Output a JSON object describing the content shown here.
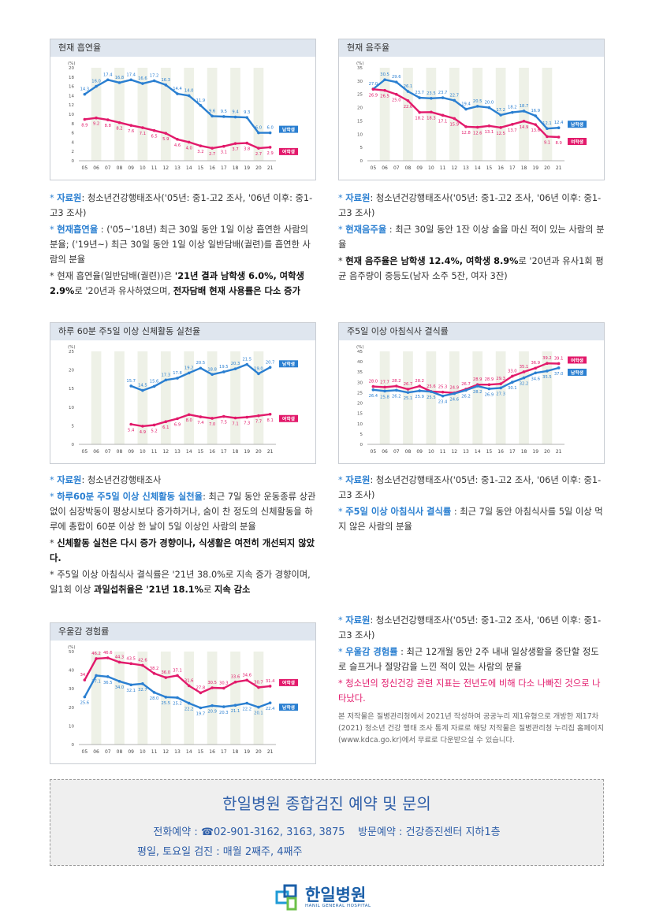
{
  "chart_data": [
    {
      "type": "line",
      "title": "현재 흡연율",
      "ylabel": "(%)",
      "ylim": [
        0,
        20
      ],
      "yticks": [
        0,
        2,
        4,
        6,
        8,
        10,
        12,
        14,
        16,
        18,
        20
      ],
      "categories": [
        "05",
        "06",
        "07",
        "08",
        "09",
        "10",
        "11",
        "12",
        "13",
        "14",
        "15",
        "16",
        "17",
        "18",
        "19",
        "20",
        "21"
      ],
      "series": [
        {
          "name": "남학생",
          "color": "#2a7fd1",
          "values": [
            14.3,
            16.0,
            17.4,
            16.8,
            17.4,
            16.6,
            17.2,
            16.3,
            14.4,
            14.0,
            11.9,
            9.6,
            9.5,
            9.4,
            9.3,
            6.0,
            6.0
          ]
        },
        {
          "name": "여학생",
          "color": "#e21a6b",
          "values": [
            8.9,
            9.2,
            8.8,
            8.2,
            7.6,
            7.1,
            6.5,
            5.9,
            4.6,
            4.0,
            3.2,
            2.7,
            3.1,
            3.7,
            3.8,
            2.7,
            2.9
          ]
        }
      ]
    },
    {
      "type": "line",
      "title": "현재 음주율",
      "ylabel": "(%)",
      "ylim": [
        0,
        35
      ],
      "yticks": [
        0,
        5,
        10,
        15,
        20,
        25,
        30,
        35
      ],
      "categories": [
        "05",
        "06",
        "07",
        "08",
        "09",
        "10",
        "11",
        "12",
        "13",
        "14",
        "15",
        "16",
        "17",
        "18",
        "19",
        "20",
        "21"
      ],
      "series": [
        {
          "name": "남학생",
          "color": "#2a7fd1",
          "values": [
            27.0,
            30.5,
            29.6,
            26.1,
            23.7,
            23.5,
            23.7,
            22.7,
            19.4,
            20.5,
            20.0,
            17.2,
            18.2,
            18.7,
            16.9,
            12.1,
            12.4
          ]
        },
        {
          "name": "여학생",
          "color": "#e21a6b",
          "values": [
            26.9,
            26.5,
            25.0,
            22.6,
            18.2,
            18.3,
            17.1,
            15.9,
            12.8,
            12.6,
            13.1,
            12.5,
            13.7,
            14.9,
            13.6,
            9.1,
            8.9
          ]
        }
      ]
    },
    {
      "type": "line",
      "title": "하루 60분 주5일 이상 신체활동 실천율",
      "ylabel": "(%)",
      "ylim": [
        0,
        25
      ],
      "yticks": [
        0,
        5,
        10,
        15,
        20,
        25
      ],
      "categories": [
        "05",
        "06",
        "07",
        "08",
        "09",
        "10",
        "11",
        "12",
        "13",
        "14",
        "15",
        "16",
        "17",
        "18",
        "19",
        "20",
        "21"
      ],
      "series": [
        {
          "name": "남학생",
          "color": "#2a7fd1",
          "values": [
            null,
            null,
            null,
            null,
            15.7,
            14.5,
            15.6,
            17.3,
            17.8,
            19.2,
            20.5,
            18.8,
            19.5,
            20.3,
            21.5,
            19.0,
            20.7
          ]
        },
        {
          "name": "여학생",
          "color": "#e21a6b",
          "values": [
            null,
            null,
            null,
            null,
            5.4,
            4.9,
            5.2,
            6.1,
            6.9,
            8.0,
            7.4,
            7.0,
            7.5,
            7.1,
            7.3,
            7.7,
            8.1
          ]
        }
      ]
    },
    {
      "type": "line",
      "title": "주5일 이상 아침식사 결식률",
      "ylabel": "(%)",
      "ylim": [
        0,
        45
      ],
      "yticks": [
        0,
        5,
        10,
        15,
        20,
        25,
        30,
        35,
        40,
        45
      ],
      "categories": [
        "05",
        "06",
        "07",
        "08",
        "09",
        "10",
        "11",
        "12",
        "13",
        "14",
        "15",
        "16",
        "17",
        "18",
        "19",
        "20",
        "21"
      ],
      "series": [
        {
          "name": "여학생",
          "color": "#e21a6b",
          "values": [
            28.0,
            27.7,
            28.2,
            26.7,
            28.2,
            25.6,
            25.3,
            24.9,
            26.7,
            28.9,
            28.9,
            29.3,
            33.0,
            35.1,
            36.9,
            39.2,
            39.1
          ]
        },
        {
          "name": "남학생",
          "color": "#2a7fd1",
          "values": [
            26.4,
            25.8,
            26.2,
            25.1,
            25.9,
            25.5,
            23.4,
            24.6,
            26.2,
            28.2,
            26.9,
            27.3,
            30.1,
            32.2,
            34.6,
            35.5,
            37.0
          ]
        }
      ]
    },
    {
      "type": "line",
      "title": "우울감 경험률",
      "ylabel": "(%)",
      "ylim": [
        0,
        50
      ],
      "yticks": [
        0,
        10,
        20,
        30,
        40,
        50
      ],
      "categories": [
        "05",
        "06",
        "07",
        "08",
        "09",
        "10",
        "11",
        "12",
        "13",
        "14",
        "15",
        "16",
        "17",
        "18",
        "19",
        "20",
        "21"
      ],
      "series": [
        {
          "name": "여학생",
          "color": "#e21a6b",
          "values": [
            34.7,
            46.2,
            46.6,
            44.3,
            43.5,
            42.6,
            38.2,
            36.0,
            37.1,
            31.6,
            27.8,
            30.5,
            30.3,
            33.6,
            34.6,
            30.7,
            31.4
          ]
        },
        {
          "name": "남학생",
          "color": "#2a7fd1",
          "values": [
            25.6,
            37.1,
            36.5,
            34.0,
            32.1,
            32.7,
            28.0,
            25.5,
            25.2,
            22.2,
            19.7,
            20.9,
            20.3,
            21.1,
            22.2,
            20.1,
            22.4
          ]
        }
      ]
    }
  ],
  "notes": {
    "smoking": [
      {
        "star": "* ",
        "key": "자료원",
        "text": ": 청소년건강행태조사('05년: 중1-고2 조사, '06년 이후: 중1-고3 조사)"
      },
      {
        "star": "* ",
        "key": "현재흡연율",
        "text": " : ('05~'18년) 최근 30일 동안 1일 이상 흡연한 사람의 분율; ('19년~) 최근 30일 동안 1일 이상 일반담배(궐련)를 흡연한 사람의 분율"
      },
      {
        "star": "* ",
        "pre": "현재 흡연율(일반담배(궐련))은 ",
        "bold1": "'21년 결과 남학생 6.0%, 여학생 2.9%",
        "mid": "로 '20년과 유사하였으며, ",
        "bold2": "전자담배 현재 사용률은 다소 증가"
      }
    ],
    "drinking": [
      {
        "star": "* ",
        "key": "자료원",
        "text": ": 청소년건강행태조사('05년: 중1-고2 조사, '06년 이후: 중1-고3 조사)"
      },
      {
        "star": "* ",
        "key": "현재음주율",
        "text": " : 최근 30일 동안 1잔 이상 술을 마신 적이 있는 사람의 분율"
      },
      {
        "star": "* ",
        "bold1": "현재 음주율은 남학생 12.4%, 여학생 8.9%",
        "mid": "로 '20년과 유사1회 평균 음주량이 중등도(남자 소주 5잔, 여자 3잔)"
      }
    ],
    "activity": [
      {
        "star": "* ",
        "key": "자료원",
        "text": ": 청소년건강행태조사"
      },
      {
        "star": "* ",
        "key": "하루60분 주5일 이상 신체활동 실천율",
        "text": ": 최근 7일 동안 운동종류 상관없이 심장박동이 평상시보다 증가하거나, 숨이 찬 정도의 신체활동을 하루에 총합이 60분 이상 한 날이 5일 이상인 사람의 분율"
      },
      {
        "star": "* ",
        "bold1": "신체활동 실천은 다시 증가 경향이나, 식생활은 여전히 개선되지 않았다."
      },
      {
        "star": "* ",
        "pre": "주5일 이상 아침식사 결식률은 '21년 38.0%로 지속 증가 경향이며, 일1회 이상 ",
        "bold1": "과일섭취율은 '21년 18.1%",
        "mid": "로 ",
        "bold2": "지속 감소"
      }
    ],
    "breakfast": [
      {
        "star": "* ",
        "key": "자료원",
        "text": ": 청소년건강행태조사('05년: 중1-고2 조사, '06년 이후: 중1-고3 조사)"
      },
      {
        "star": "* ",
        "key": "주5일 이상 아침식사 결식률",
        "text": " : 최근 7일 동안 아침식사를 5일 이상 먹지 않은 사람의 분율"
      }
    ],
    "depression": [
      {
        "star": "* ",
        "key": "자료원",
        "text": ": 청소년건강행태조사('05년: 중1-고2 조사, '06년 이후: 중1-고3 조사)"
      },
      {
        "star": "* ",
        "key": "우울감 경험률",
        "text": " : 최근 12개월 동안 2주 내내 일상생활을 중단할 정도로 슬프거나 절망감을 느낀 적이 있는 사람의 분율"
      },
      {
        "red": "* 청소년의 정신건강 관련 지표는 전년도에 비해 다소 나빠진 것으로 나타났다."
      }
    ],
    "copyright": "본 저작물은 질병관리청에서 2021년 작성하여 공공누리 제1유형으로 개방한 제17차(2021) 청소년 건강 행태 조사 통계 자료로 해당 저작물은 질병관리청 누리집 홈페이지(www.kdca.go.kr)에서 무료로 다운받으실 수 있습니다."
  },
  "cta": {
    "title": "한일병원 종합검진 예약 및 문의",
    "line1": "전화예약 : ☎02-901-3162, 3163, 3875    방문예약 : 건강증진센터 지하1층",
    "line2": "평일, 토요일 검진 : 매월 2째주, 4째주"
  },
  "logo": {
    "name": "한일병원",
    "sub": "HANIL GENERAL HOSPITAL",
    "colors": [
      "#1f9ad6",
      "#1b5fa8",
      "#6cc04a"
    ]
  }
}
